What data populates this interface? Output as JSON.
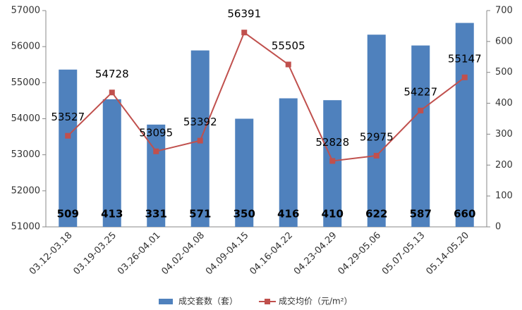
{
  "chart_data": {
    "type": "combo",
    "categories": [
      "03.12-03.18",
      "03.19-03.25",
      "03.26-04.01",
      "04.02-04.08",
      "04.09-04.15",
      "04.16-04.22",
      "04.23-04.29",
      "04.29-05.06",
      "05.07-05.13",
      "05.14-05.20"
    ],
    "series": [
      {
        "name": "成交套数（套）",
        "type": "bar",
        "axis": "y2",
        "color": "#4f81bd",
        "values": [
          509,
          413,
          331,
          571,
          350,
          416,
          410,
          622,
          587,
          660
        ]
      },
      {
        "name": "成交均价（元/m²）",
        "type": "line",
        "color": "#c0504d",
        "values": [
          53527,
          54728,
          53095,
          53392,
          56391,
          55505,
          52828,
          52975,
          54227,
          55147
        ]
      }
    ],
    "ylim": [
      51000,
      57000
    ],
    "yticks": [
      51000,
      52000,
      53000,
      54000,
      55000,
      56000,
      57000
    ],
    "y2lim": [
      0,
      700
    ],
    "y2ticks": [
      0,
      100,
      200,
      300,
      400,
      500,
      600,
      700
    ],
    "legend": "bottom"
  }
}
